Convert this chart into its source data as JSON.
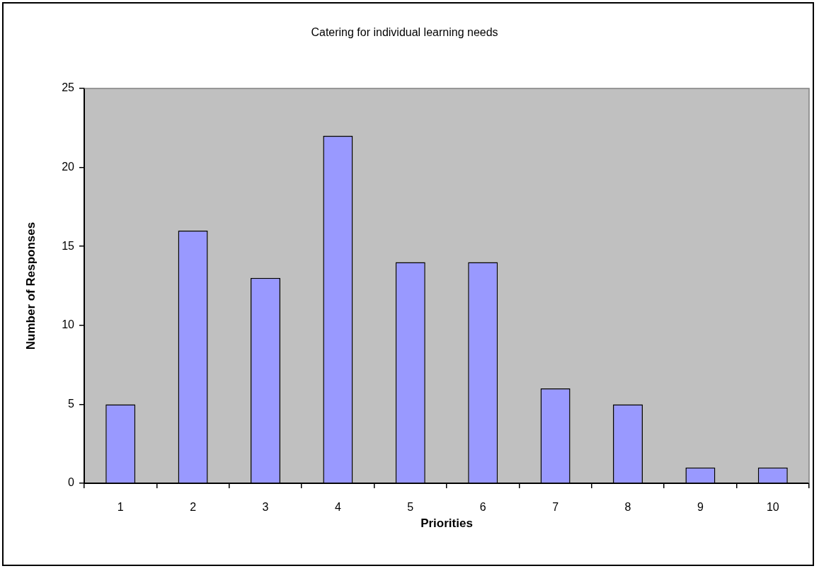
{
  "chart_data": {
    "type": "bar",
    "title": "Catering for individual learning needs",
    "xlabel": "Priorities",
    "ylabel": "Number of Responses",
    "categories": [
      "1",
      "2",
      "3",
      "4",
      "5",
      "6",
      "7",
      "8",
      "9",
      "10"
    ],
    "values": [
      5,
      16,
      13,
      22,
      14,
      14,
      6,
      5,
      1,
      1
    ],
    "color": "#9999ff",
    "ylim": [
      0,
      25
    ],
    "yticks": [
      0,
      5,
      10,
      15,
      20,
      25
    ],
    "grid": false,
    "legend": false
  }
}
